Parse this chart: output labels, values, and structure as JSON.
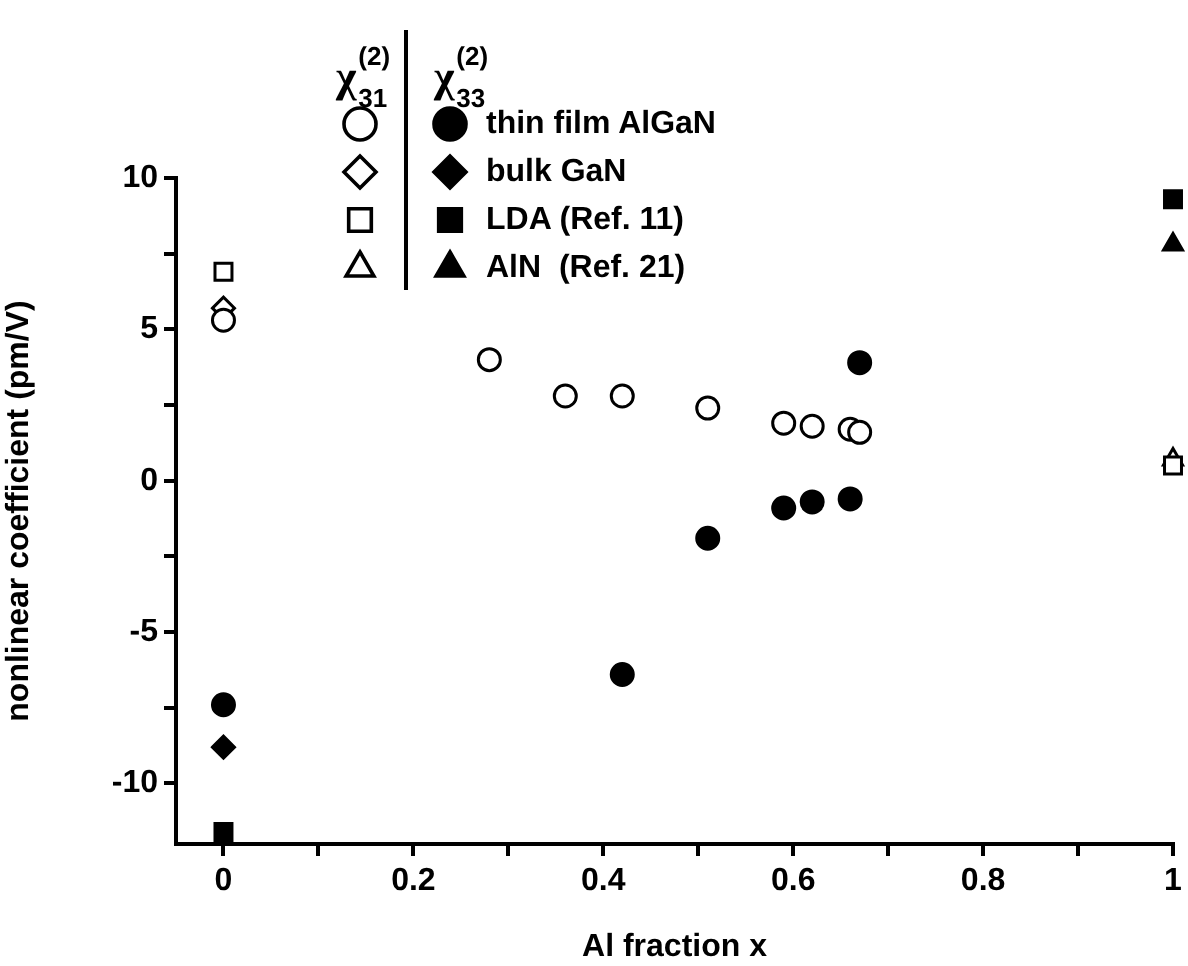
{
  "chart_data": {
    "type": "scatter",
    "xlabel": "Al fraction x",
    "ylabel": "nonlinear coefficient (pm/V)",
    "xlim": [
      -0.05,
      1
    ],
    "ylim": [
      -12,
      10
    ],
    "xticks": [
      0,
      {
        "value": 0.1,
        "label": null
      },
      0.2,
      {
        "value": 0.3,
        "label": null
      },
      0.4,
      {
        "value": 0.5,
        "label": null
      },
      0.6,
      {
        "value": 0.7,
        "label": null
      },
      0.8,
      {
        "value": 0.9,
        "label": null
      },
      1
    ],
    "yticks": [
      -10,
      {
        "value": -7.5,
        "label": null
      },
      -5,
      {
        "value": -2.5,
        "label": null
      },
      0,
      {
        "value": 2.5,
        "label": null
      },
      5,
      {
        "value": 7.5,
        "label": null
      },
      10
    ],
    "legend": "top",
    "annotations": [
      "χ$^{(2)}$$_{31}$",
      "χ$^{(2)}$$_{33}$"
    ],
    "series": [
      {
        "color": "#000000",
        "marker": "circle",
        "x": [
          0,
          0.28,
          0.36,
          0.42,
          0.51,
          0.59,
          0.62,
          0.66,
          0.67
        ],
        "values": [
          5.3,
          4.0,
          2.8,
          2.8,
          2.4,
          1.9,
          1.8,
          1.7,
          1.6
        ]
      },
      {
        "color": "#000000",
        "marker": "diamond",
        "x": [
          0
        ],
        "values": [
          5.7
        ]
      },
      {
        "color": "#000000",
        "marker": "square",
        "x": [
          0,
          1
        ],
        "values": [
          6.9,
          0.5
        ]
      },
      {
        "color": "#000000",
        "marker": "triangle",
        "x": [
          1
        ],
        "values": [
          0.7
        ]
      },
      {
        "name": "thin film AlGaN",
        "color": "#000000",
        "marker": "circle",
        "x": [
          0,
          0.42,
          0.51,
          0.59,
          0.62,
          0.66,
          0.67
        ],
        "values": [
          -7.4,
          -6.4,
          -1.9,
          -0.9,
          -0.7,
          -0.6,
          3.9
        ]
      },
      {
        "name": "bulk GaN",
        "color": "#000000",
        "marker": "diamond",
        "x": [
          0
        ],
        "values": [
          -8.8
        ]
      },
      {
        "name": "LDA (Ref. 11)",
        "color": "#000000",
        "marker": "square",
        "x": [
          0,
          1
        ],
        "values": [
          -11.6,
          9.3
        ]
      },
      {
        "name": "AlN  (Ref. 21)",
        "color": "#000000",
        "marker": "triangle",
        "x": [
          1
        ],
        "values": [
          7.8
        ]
      }
    ]
  }
}
